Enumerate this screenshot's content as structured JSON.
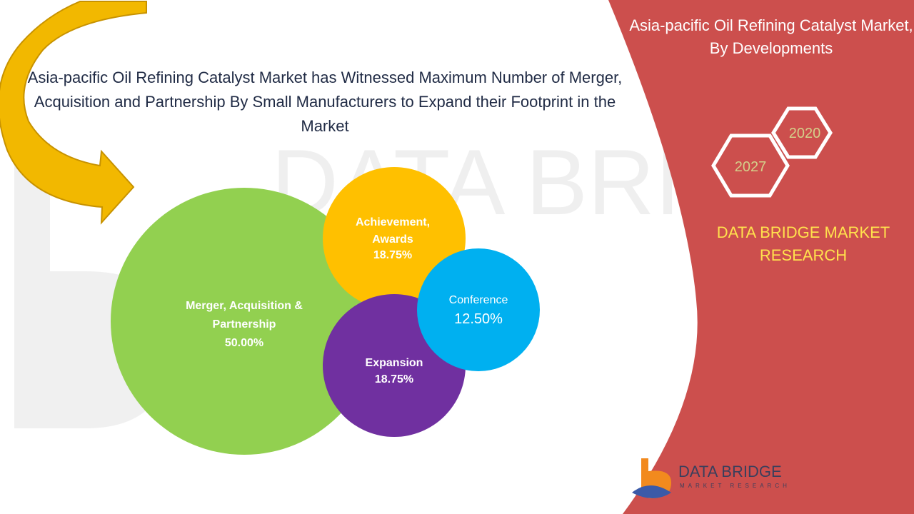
{
  "headline": "Asia-pacific Oil Refining Catalyst Market has Witnessed Maximum Number of Merger, Acquisition and Partnership By Small Manufacturers to Expand their Footprint in the Market",
  "panel_title": "Asia-pacific Oil Refining Catalyst Market, By Developments",
  "years": {
    "start": "2020",
    "end": "2027"
  },
  "brand": "DATA BRIDGE MARKET RESEARCH",
  "logo": {
    "name": "DATA BRIDGE",
    "tagline": "MARKET RESEARCH"
  },
  "colors": {
    "panel": "#cc4f4d",
    "arrow": "#f2b800",
    "merger": "#92d050",
    "achievement": "#ffc000",
    "conference": "#00b0f0",
    "expansion": "#7030a0",
    "brand_text": "#ffe14d"
  },
  "chart_data": {
    "type": "bubble",
    "categories": [
      "Merger, Acquisition & Partnership",
      "Achievement, Awards",
      "Conference",
      "Expansion"
    ],
    "values": [
      50.0,
      18.75,
      12.5,
      18.75
    ],
    "value_labels": [
      "50.00%",
      "18.75%",
      "12.50%",
      "18.75%"
    ],
    "series": [
      {
        "name": "Merger, Acquisition & Partnership",
        "value": 50.0,
        "label": "50.00%",
        "color": "#92d050"
      },
      {
        "name": "Achievement, Awards",
        "value": 18.75,
        "label": "18.75%",
        "color": "#ffc000"
      },
      {
        "name": "Conference",
        "value": 12.5,
        "label": "12.50%",
        "color": "#00b0f0"
      },
      {
        "name": "Expansion",
        "value": 18.75,
        "label": "18.75%",
        "color": "#7030a0"
      }
    ]
  }
}
